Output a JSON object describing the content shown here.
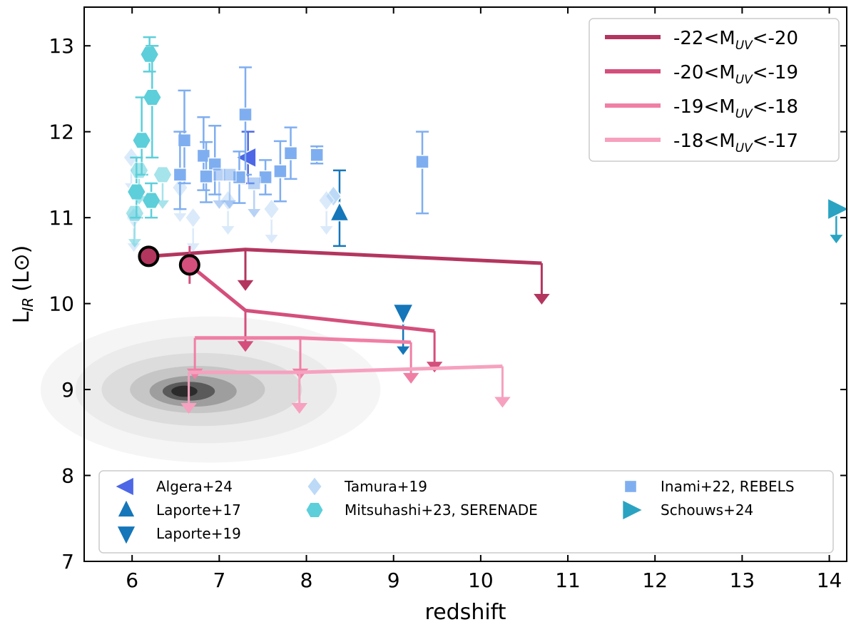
{
  "chart_data": {
    "type": "scatter",
    "xlabel": "redshift",
    "ylabel_main": "L",
    "ylabel_sub": "IR",
    "ylabel_unit": "(L⊙)",
    "xlim": [
      5.45,
      14.2
    ],
    "ylim": [
      7.0,
      13.45
    ],
    "x_ticks": [
      6,
      7,
      8,
      9,
      10,
      11,
      12,
      13,
      14
    ],
    "x_tick_labels": [
      "6",
      "7",
      "8",
      "9",
      "10",
      "11",
      "12",
      "13",
      "14"
    ],
    "y_ticks": [
      7,
      8,
      9,
      10,
      11,
      12,
      13
    ],
    "y_tick_labels": [
      "7",
      "8",
      "9",
      "10",
      "11",
      "12",
      "13"
    ],
    "colors": {
      "bin1": "#b3365f",
      "bin2": "#d44f7b",
      "bin3": "#f07fa5",
      "bin4": "#f6a1bf",
      "algera": "#4d67e6",
      "laporte": "#1576b9",
      "tamura": "#bcdaf7",
      "mitsuhashi": "#5ccfda",
      "inami": "#7faef0",
      "schouws": "#2aa3c2"
    },
    "uv_bins": [
      {
        "name": "-22<M_UV<-20",
        "legend_base": "-22<M",
        "legend_sub": "UV",
        "legend_tail": "<-20",
        "color_key": "bin1",
        "points": [
          {
            "z": 6.19,
            "lir": 10.55,
            "type": "detection",
            "err": 0.0
          },
          {
            "z": 7.3,
            "lir": 10.63,
            "type": "upper"
          },
          {
            "z": 10.7,
            "lir": 10.47,
            "type": "upper"
          }
        ]
      },
      {
        "name": "-20<M_UV<-19",
        "legend_base": "-20<M",
        "legend_sub": "UV",
        "legend_tail": "<-19",
        "color_key": "bin2",
        "points": [
          {
            "z": 6.66,
            "lir": 10.45,
            "type": "detection",
            "err": 0.22
          },
          {
            "z": 7.3,
            "lir": 9.92,
            "type": "upper"
          },
          {
            "z": 9.47,
            "lir": 9.68,
            "type": "upper"
          }
        ]
      },
      {
        "name": "-19<M_UV<-18",
        "legend_base": "-19<M",
        "legend_sub": "UV",
        "legend_tail": "<-18",
        "color_key": "bin3",
        "points": [
          {
            "z": 6.72,
            "lir": 9.6,
            "type": "upper"
          },
          {
            "z": 7.93,
            "lir": 9.6,
            "type": "upper"
          },
          {
            "z": 9.2,
            "lir": 9.55,
            "type": "upper"
          }
        ]
      },
      {
        "name": "-18<M_UV<-17",
        "legend_base": "-18<M",
        "legend_sub": "UV",
        "legend_tail": "<-17",
        "color_key": "bin4",
        "points": [
          {
            "z": 6.65,
            "lir": 9.2,
            "type": "upper"
          },
          {
            "z": 7.92,
            "lir": 9.2,
            "type": "upper"
          },
          {
            "z": 10.25,
            "lir": 9.27,
            "type": "upper"
          }
        ]
      }
    ],
    "literature": [
      {
        "name": "Algera+24",
        "marker": "tri-left",
        "color_key": "algera",
        "points": [
          {
            "z": 7.33,
            "lir": 11.7,
            "err_up": 0.3,
            "err_dn": 0.3
          }
        ]
      },
      {
        "name": "Laporte+17",
        "marker": "tri-up",
        "color_key": "laporte",
        "points": [
          {
            "z": 8.38,
            "lir": 11.05,
            "err_up": 0.5,
            "err_dn": 0.38
          }
        ]
      },
      {
        "name": "Laporte+19",
        "marker": "tri-down",
        "color_key": "laporte",
        "points": [
          {
            "z": 9.11,
            "lir": 9.9,
            "upper": true
          }
        ]
      },
      {
        "name": "Tamura+19",
        "marker": "diamond",
        "color_key": "tamura",
        "points": [
          {
            "z": 8.31,
            "lir": 11.25
          },
          {
            "z": 5.99,
            "lir": 11.7,
            "upper": true
          },
          {
            "z": 6.02,
            "lir": 11.0,
            "upper": true
          },
          {
            "z": 6.55,
            "lir": 11.35,
            "upper": true
          },
          {
            "z": 6.7,
            "lir": 11.0,
            "upper": true
          },
          {
            "z": 7.1,
            "lir": 11.2,
            "upper": true
          },
          {
            "z": 7.6,
            "lir": 11.1,
            "upper": true
          },
          {
            "z": 8.23,
            "lir": 11.2,
            "upper": true
          }
        ]
      },
      {
        "name": "Mitsuhashi+23, SERENADE",
        "marker": "hexagon",
        "color_key": "mitsuhashi",
        "points": [
          {
            "z": 6.2,
            "lir": 12.9,
            "err_up": 0.2,
            "err_dn": 0.2
          },
          {
            "z": 6.23,
            "lir": 12.4,
            "err_up": 0.6,
            "err_dn": 0.7
          },
          {
            "z": 6.11,
            "lir": 11.9,
            "err_up": 0.5,
            "err_dn": 0.4
          },
          {
            "z": 6.05,
            "lir": 11.3,
            "err_up": 0.4,
            "err_dn": 0.3
          },
          {
            "z": 6.22,
            "lir": 11.2,
            "err_up": 0.2,
            "err_dn": 0.2
          },
          {
            "z": 6.08,
            "lir": 11.55,
            "upper": true
          },
          {
            "z": 6.35,
            "lir": 11.5,
            "upper": true
          },
          {
            "z": 6.03,
            "lir": 11.05,
            "upper": true
          }
        ]
      },
      {
        "name": "Inami+22, REBELS",
        "marker": "square",
        "color_key": "inami",
        "points": [
          {
            "z": 7.3,
            "lir": 12.2,
            "err_up": 0.55,
            "err_dn": 0.7
          },
          {
            "z": 6.6,
            "lir": 11.9,
            "err_up": 0.58,
            "err_dn": 0.5
          },
          {
            "z": 6.55,
            "lir": 11.5,
            "err_up": 0.5,
            "err_dn": 0.4
          },
          {
            "z": 6.82,
            "lir": 11.72,
            "err_up": 0.45,
            "err_dn": 0.4
          },
          {
            "z": 6.95,
            "lir": 11.62,
            "err_up": 0.45,
            "err_dn": 0.35
          },
          {
            "z": 6.85,
            "lir": 11.48,
            "err_up": 0.4,
            "err_dn": 0.3
          },
          {
            "z": 7.23,
            "lir": 11.47,
            "err_up": 0.3,
            "err_dn": 0.3
          },
          {
            "z": 7.7,
            "lir": 11.54,
            "err_up": 0.35,
            "err_dn": 0.35
          },
          {
            "z": 7.82,
            "lir": 11.75,
            "err_up": 0.3,
            "err_dn": 0.3
          },
          {
            "z": 9.33,
            "lir": 11.65,
            "err_up": 0.35,
            "err_dn": 0.6
          },
          {
            "z": 8.12,
            "lir": 11.73,
            "err_up": 0.1,
            "err_dn": 0.1
          },
          {
            "z": 7.53,
            "lir": 11.47,
            "err_up": 0.2,
            "err_dn": 0.2
          },
          {
            "z": 7.0,
            "lir": 11.5,
            "upper": true
          },
          {
            "z": 7.12,
            "lir": 11.5,
            "upper": true
          },
          {
            "z": 7.4,
            "lir": 11.4,
            "upper": true
          }
        ]
      },
      {
        "name": "Schouws+24",
        "marker": "tri-right",
        "color_key": "schouws",
        "points": [
          {
            "z": 14.08,
            "lir": 11.1,
            "upper": true
          }
        ]
      }
    ],
    "density_contours": [
      {
        "z": 6.9,
        "lir": 9.0,
        "wz": 3.9,
        "wl": 1.7,
        "shade": "#f5f5f5"
      },
      {
        "z": 6.85,
        "lir": 9.0,
        "wz": 3.0,
        "wl": 1.25,
        "shade": "#ebebeb"
      },
      {
        "z": 6.8,
        "lir": 9.0,
        "wz": 2.3,
        "wl": 0.85,
        "shade": "#dcdcdc"
      },
      {
        "z": 6.75,
        "lir": 9.0,
        "wz": 1.55,
        "wl": 0.55,
        "shade": "#c6c6c6"
      },
      {
        "z": 6.7,
        "lir": 8.98,
        "wz": 1.0,
        "wl": 0.36,
        "shade": "#9e9e9e"
      },
      {
        "z": 6.65,
        "lir": 8.98,
        "wz": 0.6,
        "wl": 0.22,
        "shade": "#5a5a5a"
      },
      {
        "z": 6.6,
        "lir": 8.98,
        "wz": 0.3,
        "wl": 0.13,
        "shade": "#2b2b2b"
      }
    ],
    "legend_position": "upper right",
    "legend2_position": "lower center"
  }
}
